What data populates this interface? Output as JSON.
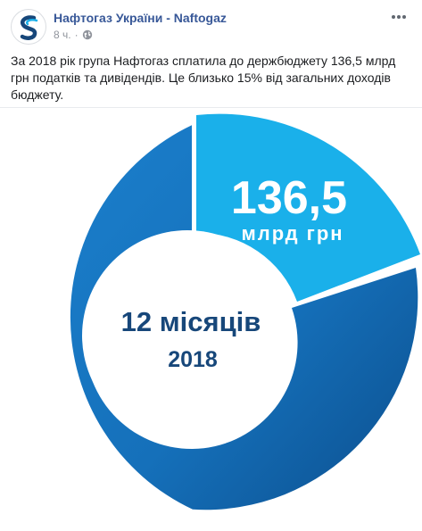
{
  "post": {
    "author": "Нафтогаз України - Naftogaz",
    "time": "8 ч.",
    "separator": "·",
    "privacy_icon": "globe-icon",
    "more_icon": "more-options-icon",
    "text": "За 2018 рік група Нафтогаз сплатила до держбюджету 136,5 млрд грн податків та дивідендів. Це близько 15% від загальних доходів бюджету."
  },
  "infographic": {
    "value": "136,5",
    "unit": "млрд грн",
    "center_title": "12 місяців",
    "center_year": "2018",
    "colors": {
      "ring_dark": "#0e5a9e",
      "ring_light": "#1b7fcc",
      "highlight": "#1ab0ea",
      "center_text": "#17477a"
    },
    "share_percent": 15
  }
}
